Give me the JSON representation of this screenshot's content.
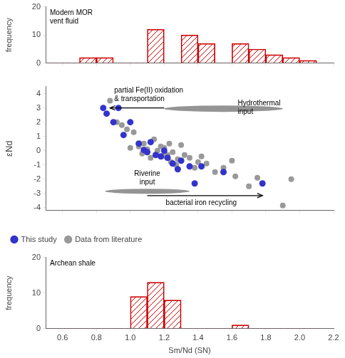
{
  "chart_data": [
    {
      "type": "histogram",
      "bins": [
        0.5,
        0.6,
        0.7,
        0.8,
        0.9,
        1.0,
        1.1,
        1.2,
        1.3,
        1.4,
        1.5,
        1.6,
        1.7,
        1.8,
        1.9,
        2.0,
        2.1
      ],
      "values": [
        0,
        0,
        2,
        2,
        0,
        0,
        12,
        0,
        10,
        7,
        0,
        7,
        5,
        3,
        2,
        1
      ],
      "color": "#cc0000",
      "xlim": [
        0.5,
        2.2
      ],
      "xticks": [
        0.6,
        0.8,
        {
          "value": 1,
          "label": "1.0"
        },
        1.2,
        1.4,
        1.6,
        1.8,
        {
          "value": 2,
          "label": "2.0"
        },
        2.2
      ],
      "ylim": [
        0,
        20
      ],
      "yticks": [
        0,
        10,
        20
      ],
      "ylabel": "frequency",
      "grid": false,
      "tick_labels": "y",
      "annotations": [
        "Modern MOR\nvent fluid"
      ]
    },
    {
      "type": "scatter",
      "series": [
        {
          "name": "This study",
          "color": "#3333cc",
          "x": [
            0.84,
            0.86,
            0.9,
            0.93,
            0.96,
            1.0,
            1.05,
            1.08,
            1.1,
            1.12,
            1.15,
            1.18,
            1.2,
            1.22,
            1.25,
            1.28,
            1.3,
            1.35,
            1.38,
            1.42,
            1.55,
            1.78
          ],
          "values": [
            3.0,
            2.6,
            2.0,
            3.0,
            1.1,
            2.0,
            0.5,
            0.05,
            -0.1,
            0.6,
            -0.3,
            -0.4,
            0.0,
            -0.5,
            -0.9,
            -1.3,
            -0.7,
            -1.1,
            -2.3,
            -1.1,
            -1.5,
            -2.3
          ]
        },
        {
          "name": "Data from literature",
          "color": "#999999",
          "x": [
            0.88,
            0.92,
            0.95,
            0.98,
            1.0,
            1.02,
            1.05,
            1.07,
            1.08,
            1.1,
            1.12,
            1.14,
            1.16,
            1.18,
            1.19,
            1.2,
            1.22,
            1.23,
            1.24,
            1.25,
            1.27,
            1.28,
            1.3,
            1.32,
            1.35,
            1.38,
            1.4,
            1.42,
            1.45,
            1.5,
            1.55,
            1.6,
            1.62,
            1.7,
            1.75,
            1.9,
            1.95
          ],
          "values": [
            3.5,
            2.0,
            1.8,
            1.5,
            0.2,
            1.3,
            0.3,
            -0.2,
            0.5,
            0.1,
            -0.5,
            0.8,
            0.0,
            0.3,
            -0.4,
            0.2,
            -0.3,
            0.5,
            -0.8,
            -0.1,
            -1.0,
            -0.6,
            0.4,
            -0.3,
            -0.5,
            -1.2,
            -0.8,
            -0.4,
            -0.9,
            -1.5,
            -1.2,
            -0.7,
            -1.8,
            -2.5,
            -1.9,
            -3.85,
            -2.0
          ]
        }
      ],
      "ellipses": [
        {
          "text": "Hydrothermal\ninput",
          "cx": 1.55,
          "cy": 2.95,
          "width": 0.7,
          "height": 0.45,
          "angle": 0,
          "color": "#666666"
        },
        {
          "text": "Riverine\ninput",
          "cx": 1.1,
          "cy": -2.85,
          "width": 0.5,
          "height": 0.35,
          "angle": 0,
          "color": "#666666"
        }
      ],
      "arrows": [
        {
          "text": "partial Fe(II) oxidation\n& transportation",
          "from": [
            1.2,
            3.0
          ],
          "to": [
            0.88,
            3.0
          ]
        },
        {
          "text": "bacterial iron recycling",
          "from": [
            1.1,
            -3.15
          ],
          "to": [
            1.78,
            -3.15
          ]
        }
      ],
      "xlim": [
        0.5,
        2.2
      ],
      "xticks": [
        0.6,
        0.8,
        {
          "value": 1,
          "label": "1.0"
        },
        1.2,
        1.4,
        1.6,
        1.8,
        {
          "value": 2,
          "label": "2.0"
        },
        2.2
      ],
      "ylim": [
        -4.2,
        4.5
      ],
      "yticks": [
        -4,
        -3,
        -2,
        -1,
        0,
        1,
        2,
        3,
        4
      ],
      "ylabel": "εNd",
      "grid": false,
      "legend": "lower left",
      "tick_labels": "y"
    },
    {
      "type": "histogram",
      "bins": [
        0.5,
        0.6,
        0.7,
        0.8,
        0.9,
        1.0,
        1.1,
        1.2,
        1.3,
        1.4,
        1.5,
        1.6,
        1.7,
        1.8,
        1.9,
        2.0,
        2.1
      ],
      "values": [
        0,
        0,
        0,
        0,
        0,
        9,
        13,
        8,
        0,
        0,
        0,
        1,
        0,
        0,
        0,
        0
      ],
      "color": "#cc0000",
      "xlim": [
        0.5,
        2.2
      ],
      "xticks": [
        0.6,
        0.8,
        {
          "value": 1,
          "label": "1.0"
        },
        1.2,
        1.4,
        1.6,
        1.8,
        {
          "value": 2,
          "label": "2.0"
        },
        2.2
      ],
      "ylim": [
        0,
        20
      ],
      "yticks": [
        0,
        10,
        20
      ],
      "xlabel": "Sm/Nd (SN)",
      "ylabel": "frequency",
      "grid": false,
      "annotations": [
        "Archean shale"
      ]
    }
  ]
}
